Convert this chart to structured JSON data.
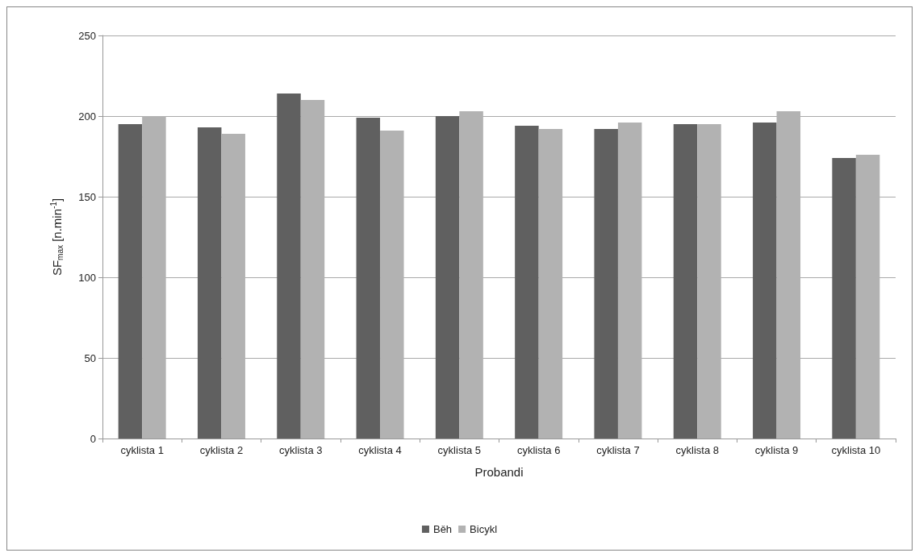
{
  "chart_data": {
    "type": "bar",
    "xlabel": "Probandi",
    "ylabel": "SF$_{max}$ [n.min$^{-1}$]",
    "categories": [
      "cyklista 1",
      "cyklista 2",
      "cyklista 3",
      "cyklista 4",
      "cyklista 5",
      "cyklista 6",
      "cyklista 7",
      "cyklista 8",
      "cyklista 9",
      "cyklista 10"
    ],
    "series": [
      {
        "name": "Běh",
        "color": "#606060",
        "values": [
          195,
          193,
          214,
          199,
          200,
          194,
          192,
          195,
          196,
          174
        ]
      },
      {
        "name": "Bicykl",
        "color": "#b2b2b2",
        "values": [
          200,
          189,
          210,
          191,
          203,
          192,
          196,
          195,
          203,
          176
        ]
      }
    ],
    "ylim": [
      0,
      250
    ],
    "yticks": [
      0,
      50,
      100,
      150,
      200,
      250
    ],
    "grid": "y",
    "legend": "bottom"
  }
}
